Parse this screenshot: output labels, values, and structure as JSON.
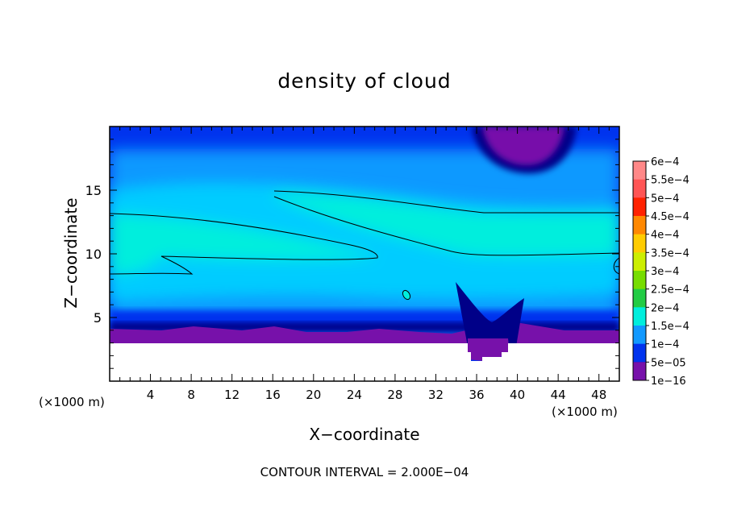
{
  "chart_data": {
    "type": "heatmap",
    "title": "density of cloud",
    "xlabel": "X−coordinate",
    "ylabel": "Z−coordinate",
    "x_unit_label": "(×1000 m)",
    "z_unit_label": "(×1000 m)",
    "footer": "CONTOUR INTERVAL = 2.000E−04",
    "xlim": [
      0,
      50
    ],
    "ylim": [
      0,
      20
    ],
    "x_ticks": [
      "4",
      "8",
      "12",
      "16",
      "20",
      "24",
      "28",
      "32",
      "36",
      "40",
      "44",
      "48"
    ],
    "y_ticks": [
      "5",
      "10",
      "15"
    ],
    "colorbar": {
      "labels": [
        "6e−4",
        "5.5e−4",
        "5e−4",
        "4.5e−4",
        "4e−4",
        "3.5e−4",
        "3e−4",
        "2.5e−4",
        "2e−4",
        "1.5e−4",
        "1e−4",
        "5e−05",
        "1e−16"
      ],
      "colors": [
        "#ff8888",
        "#ff5555",
        "#ff2200",
        "#ff8800",
        "#ffcc00",
        "#ccee00",
        "#77dd00",
        "#22cc44",
        "#00eedd",
        "#1199ff",
        "#0033ee",
        "#000088",
        "#7711aa"
      ]
    },
    "field_colors": {
      "low": "#7711aa",
      "dark": "#000088",
      "blue": "#0033ee",
      "mid": "#1199ff",
      "light": "#00ccff",
      "cyan": "#00eedd"
    }
  }
}
